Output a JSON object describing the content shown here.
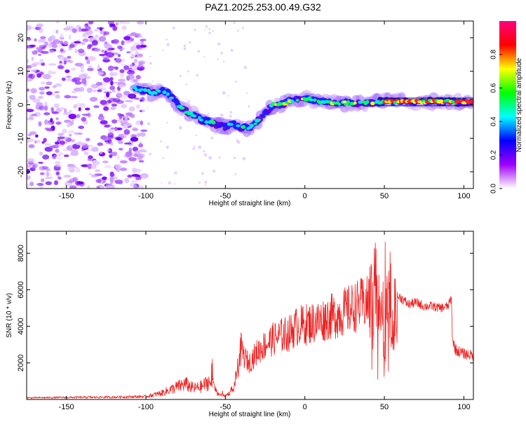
{
  "figure_title": "PAZ1.2025.253.00.49.G32",
  "chart_data": [
    {
      "type": "heatmap",
      "title": "PAZ1.2025.253.00.49.G32",
      "xlabel": "Height of straight line (km)",
      "ylabel": "Frequency (Hz)",
      "xlim": [
        -175,
        106
      ],
      "ylim": [
        -25,
        25
      ],
      "xticks": [
        -150,
        -100,
        -50,
        0,
        50,
        100
      ],
      "yticks": [
        -20,
        -10,
        0,
        10,
        20
      ],
      "colorbar": {
        "label": "Normalized spectral amplitude",
        "range": [
          0,
          1
        ],
        "ticks": [
          0.0,
          0.2,
          0.4,
          0.6,
          0.8
        ],
        "tick_labels": [
          "0.0",
          "0.2",
          "0.4",
          "0.6",
          "0.8"
        ],
        "colormap": [
          "#ffffff",
          "#a000ff",
          "#0000ff",
          "#00ffff",
          "#00ff00",
          "#ffff00",
          "#ff0000",
          "#ff0080"
        ]
      },
      "signal_track": {
        "x": [
          -107,
          -100,
          -95,
          -90,
          -85,
          -80,
          -75,
          -70,
          -65,
          -60,
          -55,
          -50,
          -45,
          -40,
          -37,
          -35,
          -30,
          -25,
          -20,
          -15,
          -10,
          -5,
          0,
          10,
          20,
          30,
          40,
          50,
          60,
          70,
          80,
          90,
          95,
          100,
          106
        ],
        "y": [
          5,
          4,
          3.5,
          4.5,
          3,
          0,
          -2,
          -3,
          -4.5,
          -5,
          -6,
          -6.5,
          -5.5,
          -7,
          -7,
          -7,
          -5,
          -2.5,
          0,
          0,
          1,
          1.5,
          2,
          1,
          0.5,
          0.5,
          0.5,
          1,
          1,
          1,
          1,
          1,
          0.8,
          0.8,
          0.8
        ]
      },
      "noise_region_x": [
        -175,
        -105
      ]
    },
    {
      "type": "line",
      "xlabel": "Height of straight line (km)",
      "ylabel": "SNR (10 * v/v)",
      "xlim": [
        -175,
        106
      ],
      "ylim": [
        0,
        9200
      ],
      "xticks": [
        -150,
        -100,
        -50,
        0,
        50,
        100
      ],
      "yticks": [
        2000,
        4000,
        6000,
        8000
      ],
      "color": "#ee2222",
      "series": [
        {
          "name": "SNR",
          "x": [
            -175,
            -150,
            -120,
            -100,
            -90,
            -80,
            -75,
            -70,
            -65,
            -60,
            -57,
            -55,
            -50,
            -45,
            -42,
            -40,
            -38,
            -35,
            -30,
            -25,
            -20,
            -15,
            -10,
            -5,
            0,
            5,
            10,
            15,
            20,
            25,
            30,
            35,
            40,
            42,
            45,
            48,
            50,
            52,
            55,
            58,
            60,
            65,
            70,
            75,
            80,
            85,
            90,
            92,
            93,
            95,
            100,
            106
          ],
          "y": [
            90,
            110,
            130,
            160,
            350,
            700,
            850,
            600,
            700,
            1000,
            800,
            300,
            200,
            500,
            1800,
            2800,
            2300,
            2000,
            2600,
            3000,
            3300,
            3500,
            3600,
            4000,
            4100,
            4200,
            4300,
            4500,
            4600,
            4800,
            5000,
            5200,
            5300,
            5500,
            4300,
            6800,
            1500,
            7500,
            4000,
            5600,
            5600,
            5200,
            5300,
            5100,
            5100,
            5000,
            5100,
            5500,
            3200,
            2700,
            2500,
            2400
          ]
        }
      ]
    }
  ]
}
